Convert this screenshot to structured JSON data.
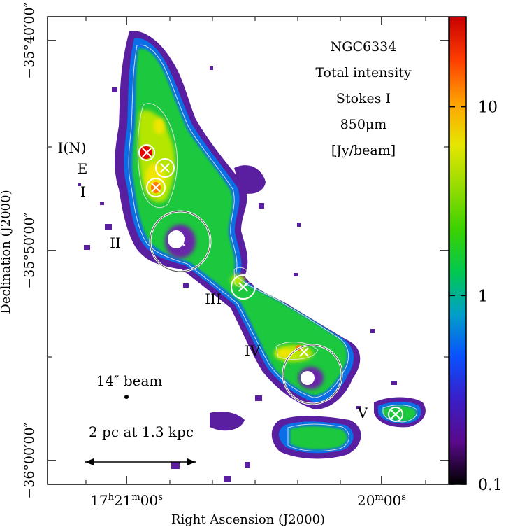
{
  "chart_data": {
    "type": "heatmap",
    "title": "NGC6334",
    "info_lines": [
      "NGC6334",
      "Total intensity",
      "Stokes I",
      "850μm",
      "[Jy/beam]"
    ],
    "xlabel": "Right Ascension (J2000)",
    "ylabel": "Declination (J2000)",
    "x_ticks": [
      {
        "label_h": "17",
        "label_m": "21",
        "label_s": "00",
        "ra_sec": 0
      },
      {
        "label_h": "",
        "label_m": "20",
        "label_s": "00",
        "ra_sec": -60
      }
    ],
    "y_ticks": [
      {
        "label": "−35°40′00″",
        "dec_arcmin": -2380
      },
      {
        "label": "−35°50′00″",
        "dec_arcmin": -2390
      },
      {
        "label": "−36°00′00″",
        "dec_arcmin": -2400
      }
    ],
    "colorbar": {
      "scale": "log",
      "range": [
        0.1,
        30
      ],
      "ticks": [
        {
          "label": "0.1",
          "value": 0.1
        },
        {
          "label": "1",
          "value": 1
        },
        {
          "label": "10",
          "value": 10
        }
      ],
      "colors": [
        "#000000",
        "#5a0a8a",
        "#3a1ec8",
        "#0a50ff",
        "#00a0c8",
        "#00c850",
        "#3cd200",
        "#96dc00",
        "#e6e600",
        "#ffa000",
        "#ff3c00",
        "#c80000"
      ]
    },
    "regions": [
      {
        "name": "I(N)",
        "dra_s": -3,
        "ddec_arcmin": 6.4
      },
      {
        "name": "E",
        "dra_s": -1,
        "ddec_arcmin": 5.8
      },
      {
        "name": "I",
        "dra_s": -2,
        "ddec_arcmin": 5.2
      },
      {
        "name": "II",
        "dra_s": -8,
        "ddec_arcmin": -1.2
      },
      {
        "name": "III",
        "dra_s": -27,
        "ddec_arcmin": -4.0
      },
      {
        "name": "IV",
        "dra_s": -41,
        "ddec_arcmin": -8.0
      },
      {
        "name": "V",
        "dra_s": -64,
        "ddec_arcmin": -12.0
      }
    ],
    "beam_label": "14″ beam",
    "scalebar_label": "2 pc at 1.3 kpc"
  }
}
